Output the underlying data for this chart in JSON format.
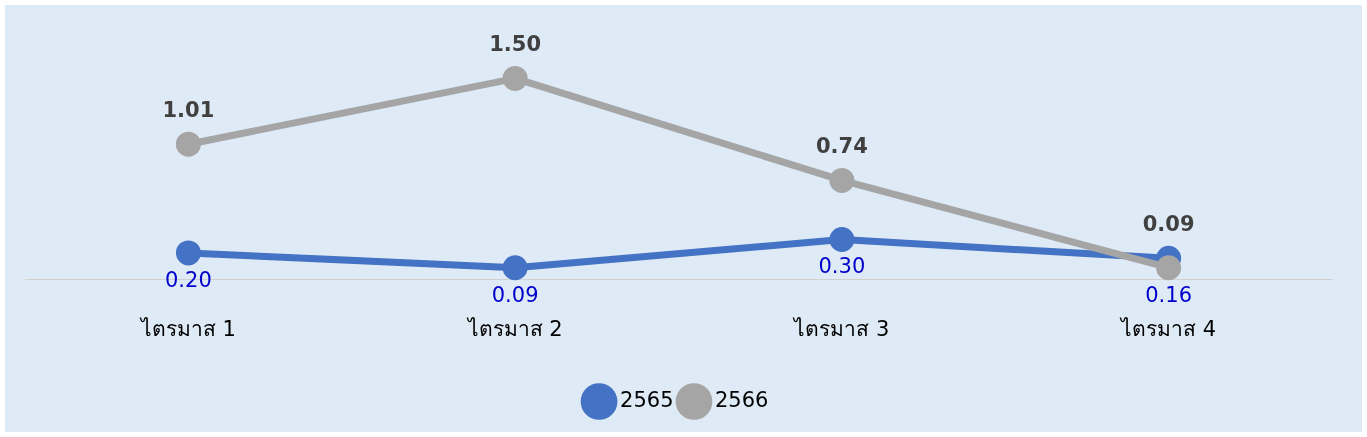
{
  "chart_data": {
    "type": "line",
    "categories": [
      "ไตรมาส 1",
      "ไตรมาส 2",
      "ไตรมาส 3",
      "ไตรมาส 4"
    ],
    "series": [
      {
        "name": "2565",
        "color": "#4472c4",
        "values": [
          0.2,
          0.09,
          0.3,
          0.16
        ],
        "value_labels": [
          "0.20",
          "0.09",
          "0.30",
          "0.16"
        ]
      },
      {
        "name": "2566",
        "color": "#a5a5a5",
        "values": [
          1.01,
          1.5,
          0.74,
          0.09
        ],
        "value_labels": [
          "1.01",
          "1.50",
          "0.74",
          "0.09"
        ]
      }
    ],
    "legend": "bottom",
    "grid": false,
    "marker": "circle",
    "line_style": "solid"
  }
}
